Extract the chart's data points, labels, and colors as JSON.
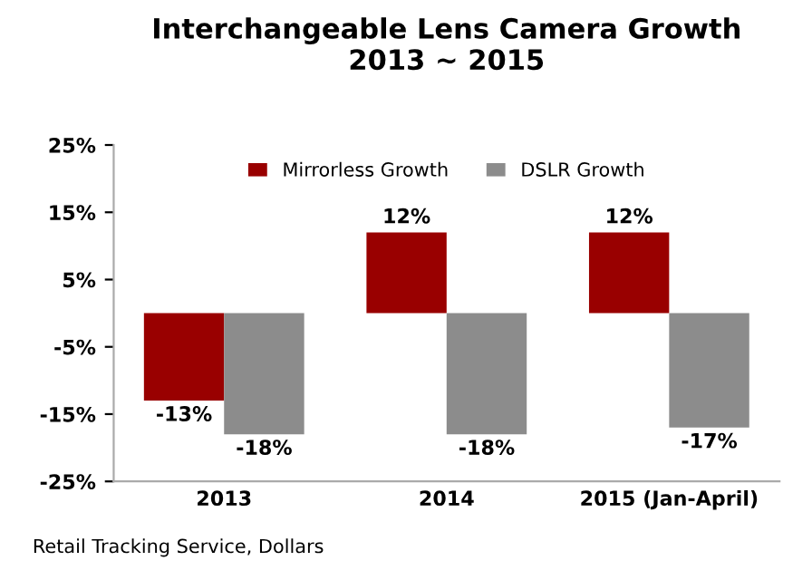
{
  "chart_data": {
    "type": "bar",
    "title": "Interchangeable Lens Camera Growth\n2013 ~ 2015",
    "categories": [
      "2013",
      "2014",
      "2015 (Jan-April)"
    ],
    "series": [
      {
        "name": "Mirrorless Growth",
        "color": "#990000",
        "values": [
          -13,
          12,
          12
        ],
        "value_labels": [
          "-13%",
          "12%",
          "12%"
        ]
      },
      {
        "name": "DSLR Growth",
        "color": "#8c8c8c",
        "values": [
          -18,
          -18,
          -17
        ],
        "value_labels": [
          "-18%",
          "-18%",
          "-17%"
        ]
      }
    ],
    "ylim": [
      -25,
      25
    ],
    "yticks": [
      {
        "value": -25,
        "label": "-25%"
      },
      {
        "value": -15,
        "label": "-15%"
      },
      {
        "value": -5,
        "label": "-5%"
      },
      {
        "value": 5,
        "label": "5%"
      },
      {
        "value": 15,
        "label": "15%"
      },
      {
        "value": 25,
        "label": "25%"
      }
    ],
    "legend": "top",
    "grid": false,
    "annotations": [
      "Retail Tracking Service, Dollars"
    ]
  }
}
